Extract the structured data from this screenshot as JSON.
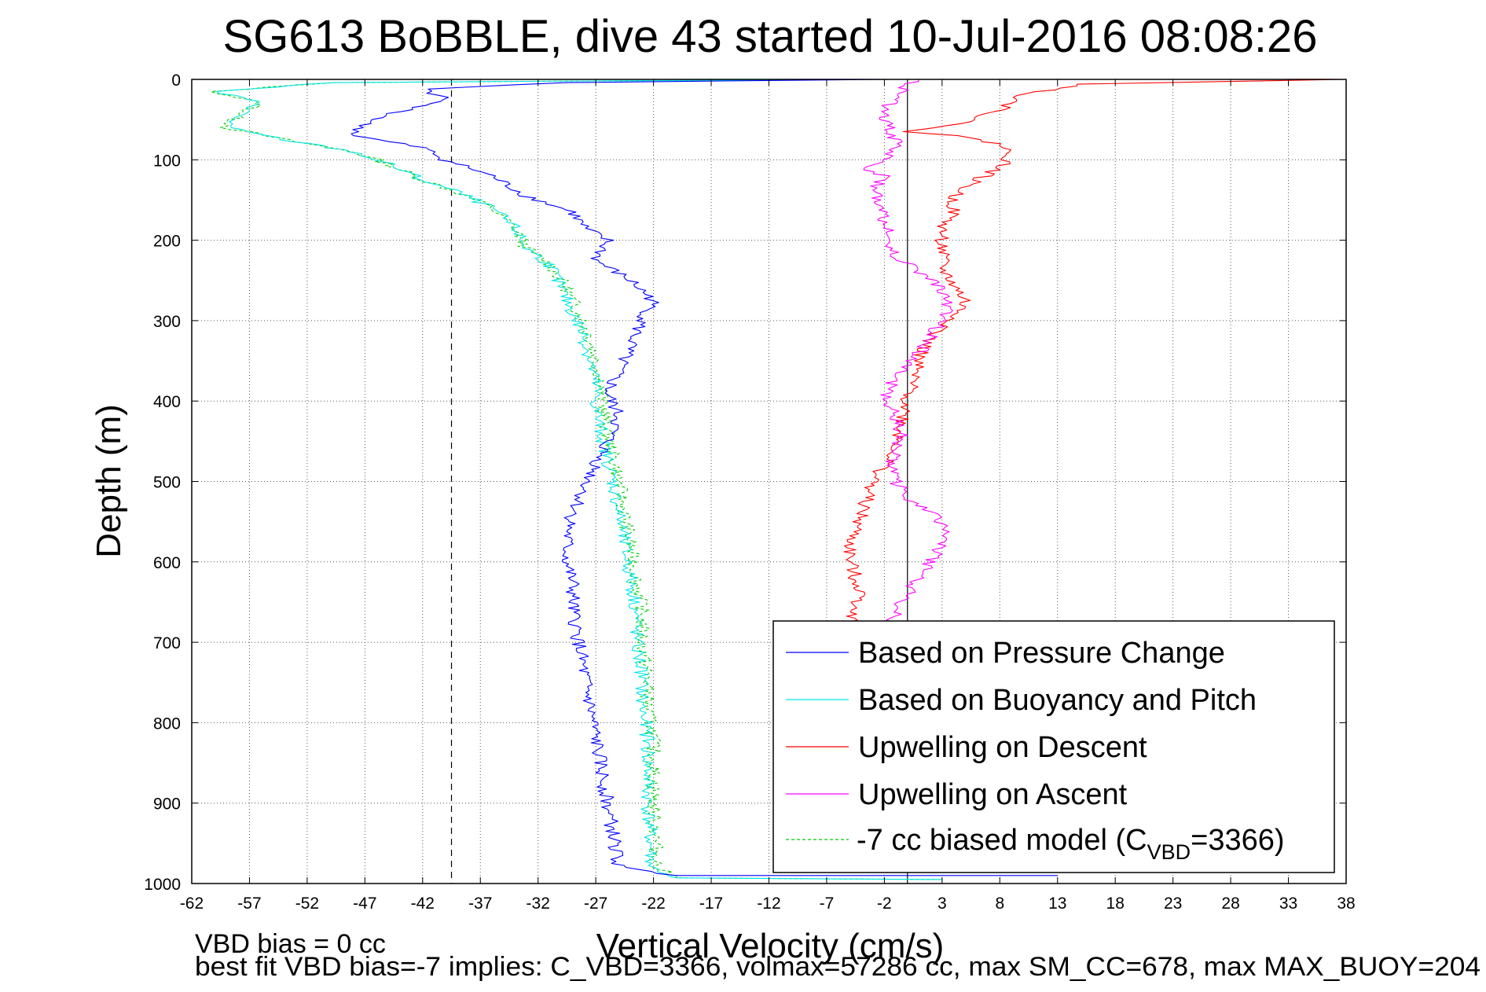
{
  "chart_data": {
    "type": "line",
    "title": "SG613 BoBBLE, dive 43 started 10-Jul-2016 08:08:26",
    "xlabel": "Vertical Velocity (cm/s)",
    "ylabel": "Depth (m)",
    "xlim": [
      -62,
      38
    ],
    "ylim": [
      0,
      1000
    ],
    "y_reversed": true,
    "grid": true,
    "x_ticks": [
      "-62",
      "-57",
      "-52",
      "-47",
      "-42",
      "-37",
      "-32",
      "-27",
      "-22",
      "-17",
      "-12",
      "-7",
      "-2",
      "3",
      "8",
      "13",
      "18",
      "23",
      "28",
      "33",
      "38"
    ],
    "y_ticks": [
      "0",
      "100",
      "200",
      "300",
      "400",
      "500",
      "600",
      "700",
      "800",
      "900",
      "1000"
    ],
    "reference_lines": [
      {
        "x": -39.5,
        "style": "dashed",
        "color": "#000000"
      },
      {
        "x": 0,
        "style": "solid",
        "color": "#000000"
      }
    ],
    "legend_placement": "bottom-right",
    "legend": [
      {
        "label": "Based on Pressure Change",
        "series": "pressure"
      },
      {
        "label": "Based on Buoyancy and Pitch",
        "series": "buoyancy"
      },
      {
        "label": "Upwelling on Descent",
        "series": "up_descent"
      },
      {
        "label": "Upwelling on Ascent",
        "series": "up_ascent"
      },
      {
        "label_main": "-7 cc biased model (C",
        "label_sub": "VBD",
        "label_end": "=3366)",
        "series": "biased"
      }
    ],
    "series": [
      {
        "id": "pressure",
        "name": "Based on Pressure Change",
        "color": "#0000ff",
        "dash": false,
        "points": [
          [
            -2,
            0
          ],
          [
            -30,
            4
          ],
          [
            -42,
            12
          ],
          [
            -40,
            25
          ],
          [
            -44,
            40
          ],
          [
            -47,
            55
          ],
          [
            -48,
            70
          ],
          [
            -42,
            85
          ],
          [
            -40,
            100
          ],
          [
            -36,
            120
          ],
          [
            -33,
            145
          ],
          [
            -29,
            165
          ],
          [
            -28,
            185
          ],
          [
            -26,
            200
          ],
          [
            -27,
            225
          ],
          [
            -24,
            250
          ],
          [
            -22,
            275
          ],
          [
            -23,
            300
          ],
          [
            -24,
            330
          ],
          [
            -25,
            360
          ],
          [
            -26,
            390
          ],
          [
            -25,
            420
          ],
          [
            -26,
            450
          ],
          [
            -27,
            480
          ],
          [
            -28,
            510
          ],
          [
            -29,
            540
          ],
          [
            -29.5,
            570
          ],
          [
            -29.5,
            600
          ],
          [
            -29,
            630
          ],
          [
            -29,
            660
          ],
          [
            -28.5,
            700
          ],
          [
            -28,
            740
          ],
          [
            -27.5,
            780
          ],
          [
            -27,
            820
          ],
          [
            -26.5,
            860
          ],
          [
            -26,
            900
          ],
          [
            -25.5,
            940
          ],
          [
            -25,
            980
          ],
          [
            -20,
            990
          ],
          [
            13,
            990
          ]
        ]
      },
      {
        "id": "buoyancy",
        "name": "Based on Buoyancy and Pitch",
        "color": "#00e5e5",
        "dash": false,
        "points": [
          [
            -4,
            0
          ],
          [
            -50,
            4
          ],
          [
            -60,
            15
          ],
          [
            -56,
            30
          ],
          [
            -58,
            45
          ],
          [
            -59,
            60
          ],
          [
            -54,
            75
          ],
          [
            -48,
            90
          ],
          [
            -45,
            105
          ],
          [
            -42,
            125
          ],
          [
            -39,
            140
          ],
          [
            -36,
            160
          ],
          [
            -34,
            185
          ],
          [
            -33,
            210
          ],
          [
            -31,
            230
          ],
          [
            -30,
            260
          ],
          [
            -29,
            290
          ],
          [
            -28,
            320
          ],
          [
            -27.5,
            350
          ],
          [
            -27,
            380
          ],
          [
            -27,
            410
          ],
          [
            -26.5,
            440
          ],
          [
            -26,
            470
          ],
          [
            -25.5,
            500
          ],
          [
            -25,
            540
          ],
          [
            -24.5,
            580
          ],
          [
            -24,
            620
          ],
          [
            -23.5,
            660
          ],
          [
            -23.5,
            700
          ],
          [
            -23,
            740
          ],
          [
            -23,
            780
          ],
          [
            -22.5,
            820
          ],
          [
            -22.5,
            860
          ],
          [
            -22.5,
            900
          ],
          [
            -22.3,
            940
          ],
          [
            -22.2,
            980
          ],
          [
            -20,
            993
          ],
          [
            3,
            995
          ]
        ]
      },
      {
        "id": "biased",
        "name": "-7 cc biased model (CVBD=3366)",
        "color": "#00cc00",
        "dash": true,
        "points": [
          [
            -4,
            0
          ],
          [
            -50,
            4
          ],
          [
            -60,
            15
          ],
          [
            -56,
            30
          ],
          [
            -58,
            45
          ],
          [
            -59,
            60
          ],
          [
            -54,
            75
          ],
          [
            -48,
            90
          ],
          [
            -45,
            105
          ],
          [
            -42,
            125
          ],
          [
            -39,
            140
          ],
          [
            -36,
            160
          ],
          [
            -34,
            185
          ],
          [
            -33,
            210
          ],
          [
            -31,
            230
          ],
          [
            -29.5,
            260
          ],
          [
            -28.5,
            290
          ],
          [
            -27.5,
            320
          ],
          [
            -27,
            350
          ],
          [
            -26.5,
            380
          ],
          [
            -26.3,
            410
          ],
          [
            -26,
            440
          ],
          [
            -25.5,
            470
          ],
          [
            -25,
            500
          ],
          [
            -24.5,
            540
          ],
          [
            -24,
            580
          ],
          [
            -23.5,
            620
          ],
          [
            -23,
            660
          ],
          [
            -23,
            700
          ],
          [
            -22.5,
            740
          ],
          [
            -22.5,
            780
          ],
          [
            -22,
            820
          ],
          [
            -22,
            860
          ],
          [
            -22,
            900
          ],
          [
            -21.8,
            940
          ],
          [
            -21.7,
            980
          ],
          [
            -20,
            993
          ],
          [
            3,
            995
          ]
        ]
      },
      {
        "id": "up_descent",
        "name": "Upwelling on Descent",
        "color": "#ff0000",
        "dash": false,
        "points": [
          [
            38,
            0
          ],
          [
            15,
            6
          ],
          [
            10,
            20
          ],
          [
            8,
            40
          ],
          [
            3,
            60
          ],
          [
            0,
            65
          ],
          [
            4,
            70
          ],
          [
            8,
            80
          ],
          [
            9,
            95
          ],
          [
            8,
            110
          ],
          [
            6,
            125
          ],
          [
            4,
            145
          ],
          [
            4,
            165
          ],
          [
            3,
            185
          ],
          [
            3,
            210
          ],
          [
            3,
            235
          ],
          [
            4,
            255
          ],
          [
            5,
            275
          ],
          [
            4,
            300
          ],
          [
            2,
            320
          ],
          [
            1,
            345
          ],
          [
            0.5,
            370
          ],
          [
            0,
            400
          ],
          [
            -0.5,
            430
          ],
          [
            -1,
            460
          ],
          [
            -2,
            480
          ],
          [
            -3,
            500
          ],
          [
            -3.5,
            520
          ],
          [
            -4,
            540
          ],
          [
            -4.5,
            560
          ],
          [
            -5,
            580
          ],
          [
            -5,
            600
          ],
          [
            -4.5,
            620
          ],
          [
            -4,
            640
          ],
          [
            -4.5,
            660
          ],
          [
            -5,
            680
          ]
        ]
      },
      {
        "id": "up_ascent",
        "name": "Upwelling on Ascent",
        "color": "#ff00ff",
        "dash": false,
        "points": [
          [
            -1.5,
            680
          ],
          [
            -1,
            660
          ],
          [
            0,
            640
          ],
          [
            1,
            620
          ],
          [
            2,
            600
          ],
          [
            3,
            580
          ],
          [
            3.5,
            560
          ],
          [
            2,
            540
          ],
          [
            0,
            520
          ],
          [
            -1,
            500
          ],
          [
            -1.5,
            480
          ],
          [
            -1,
            460
          ],
          [
            -0.5,
            440
          ],
          [
            -1,
            420
          ],
          [
            -2,
            400
          ],
          [
            -1.5,
            380
          ],
          [
            -0.5,
            360
          ],
          [
            1,
            340
          ],
          [
            2,
            320
          ],
          [
            3,
            300
          ],
          [
            3.5,
            280
          ],
          [
            3,
            260
          ],
          [
            1,
            240
          ],
          [
            -1,
            220
          ],
          [
            -1.5,
            200
          ],
          [
            -2,
            180
          ],
          [
            -2,
            160
          ],
          [
            -3,
            140
          ],
          [
            -2,
            120
          ],
          [
            -4,
            110
          ],
          [
            -2,
            100
          ],
          [
            -1,
            80
          ],
          [
            -1.5,
            60
          ],
          [
            -2,
            40
          ],
          [
            -1,
            20
          ],
          [
            0,
            8
          ],
          [
            1,
            0
          ]
        ]
      }
    ]
  },
  "annotations": {
    "line1": "VBD bias = 0 cc",
    "line2": "best fit VBD bias=-7 implies: C_VBD=3366, volmax=57286 cc, max SM_CC=678, max MAX_BUOY=204"
  }
}
